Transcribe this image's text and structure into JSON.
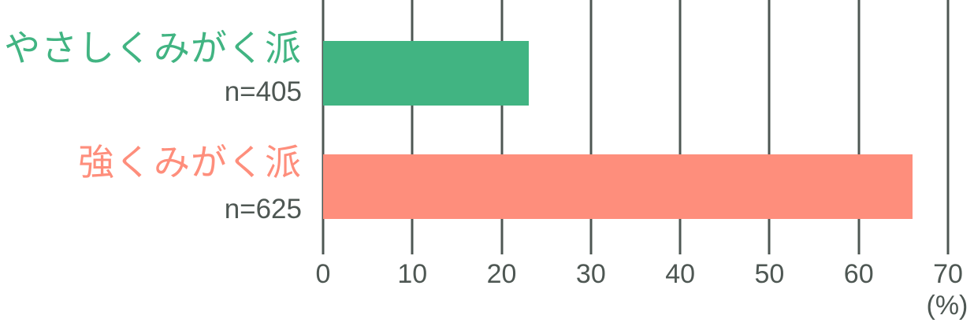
{
  "chart_data": {
    "type": "bar",
    "orientation": "horizontal",
    "title": "",
    "categories": [
      "やさしくみがく派",
      "強くみがく派"
    ],
    "n_labels": [
      "n=405",
      "n=625"
    ],
    "values": [
      23,
      66
    ],
    "bar_colors": [
      "#41b482",
      "#fe8e7c"
    ],
    "xlabel": "(%)",
    "xticks": [
      0,
      10,
      20,
      30,
      40,
      50,
      60,
      70
    ],
    "xlim": [
      0,
      70
    ],
    "grid": "vertical-gridlines-no-baseline",
    "legend": "none",
    "axis_text_color": "#4e5753",
    "gridline_color": "#4e5753",
    "background_color": "#ffffff"
  }
}
